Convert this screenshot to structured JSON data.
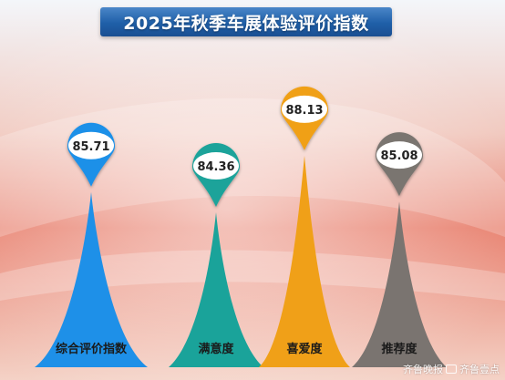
{
  "title": "2025年秋季车展体验评价指数",
  "watermark": {
    "part1": "齐鲁晚报",
    "part2": "齐鲁壹点"
  },
  "colors": {
    "bar_blue": "#1e90e8",
    "bar_teal": "#1aa39a",
    "bar_orange": "#f0a018",
    "bar_gray": "#7a7470",
    "background_warm": "#e8806e"
  },
  "chart_data": {
    "type": "bar",
    "title": "2025年秋季车展体验评价指数",
    "categories": [
      "综合评价指数",
      "满意度",
      "喜爱度",
      "推荐度"
    ],
    "values": [
      85.71,
      84.36,
      88.13,
      85.08
    ],
    "value_labels": [
      "85.71",
      "84.36",
      "88.13",
      "85.08"
    ],
    "xlabel": "",
    "ylabel": "",
    "ylim": [
      80,
      90
    ],
    "grid": false,
    "legend": "none"
  }
}
